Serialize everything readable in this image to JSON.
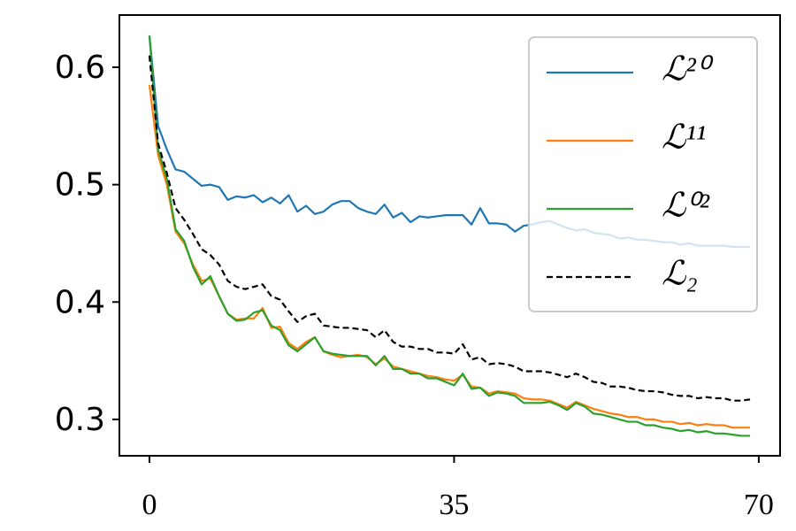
{
  "chart_data": {
    "type": "line",
    "x": [
      0,
      1,
      2,
      3,
      4,
      5,
      6,
      7,
      8,
      9,
      10,
      11,
      12,
      13,
      14,
      15,
      16,
      17,
      18,
      19,
      20,
      21,
      22,
      23,
      24,
      25,
      26,
      27,
      28,
      29,
      30,
      31,
      32,
      33,
      34,
      35,
      36,
      37,
      38,
      39,
      40,
      41,
      42,
      43,
      44,
      45,
      46,
      47,
      48,
      49,
      50,
      51,
      52,
      53,
      54,
      55,
      56,
      57,
      58,
      59,
      60,
      61,
      62,
      63,
      64,
      65,
      66,
      67,
      68,
      69
    ],
    "xlim": [
      -3.45,
      72.45
    ],
    "xticks": [
      0,
      35,
      70
    ],
    "ylim": [
      0.269,
      0.6445
    ],
    "yticks": [
      {
        "value": 0.3,
        "label": "0.3"
      },
      {
        "value": 0.4,
        "label": "0.4"
      },
      {
        "value": 0.5,
        "label": "0.5"
      },
      {
        "value": 0.6,
        "label": "0.6"
      }
    ],
    "legend": "upper right",
    "series": [
      {
        "name": "ℒ²⁰",
        "color": "#1f77b4",
        "linestyle": "solid",
        "values": [
          0.627,
          0.55,
          0.53,
          0.513,
          0.511,
          0.505,
          0.499,
          0.5,
          0.498,
          0.487,
          0.49,
          0.489,
          0.491,
          0.485,
          0.489,
          0.484,
          0.491,
          0.477,
          0.482,
          0.475,
          0.477,
          0.483,
          0.486,
          0.486,
          0.48,
          0.477,
          0.475,
          0.483,
          0.472,
          0.476,
          0.468,
          0.473,
          0.472,
          0.473,
          0.474,
          0.474,
          0.474,
          0.466,
          0.48,
          0.467,
          0.467,
          0.466,
          0.46,
          0.465,
          0.466,
          0.468,
          0.469,
          0.466,
          0.463,
          0.461,
          0.462,
          0.459,
          0.458,
          0.457,
          0.454,
          0.455,
          0.453,
          0.453,
          0.452,
          0.451,
          0.451,
          0.449,
          0.45,
          0.448,
          0.448,
          0.448,
          0.448,
          0.447,
          0.447,
          0.447
        ]
      },
      {
        "name": "ℒ¹¹",
        "color": "#ff7f0e",
        "linestyle": "solid",
        "values": [
          0.585,
          0.525,
          0.5,
          0.46,
          0.45,
          0.432,
          0.418,
          0.42,
          0.405,
          0.39,
          0.385,
          0.386,
          0.386,
          0.395,
          0.378,
          0.379,
          0.365,
          0.36,
          0.366,
          0.37,
          0.358,
          0.355,
          0.353,
          0.354,
          0.355,
          0.353,
          0.347,
          0.352,
          0.345,
          0.343,
          0.341,
          0.339,
          0.337,
          0.336,
          0.334,
          0.333,
          0.338,
          0.328,
          0.327,
          0.322,
          0.324,
          0.323,
          0.322,
          0.318,
          0.317,
          0.317,
          0.316,
          0.313,
          0.31,
          0.315,
          0.312,
          0.309,
          0.307,
          0.305,
          0.304,
          0.302,
          0.302,
          0.3,
          0.3,
          0.298,
          0.298,
          0.296,
          0.297,
          0.295,
          0.296,
          0.295,
          0.295,
          0.293,
          0.293,
          0.293
        ]
      },
      {
        "name": "ℒ⁰²",
        "color": "#2ca02c",
        "linestyle": "solid",
        "values": [
          0.627,
          0.53,
          0.505,
          0.462,
          0.452,
          0.43,
          0.415,
          0.422,
          0.405,
          0.39,
          0.384,
          0.385,
          0.391,
          0.393,
          0.38,
          0.376,
          0.363,
          0.358,
          0.364,
          0.37,
          0.358,
          0.356,
          0.355,
          0.354,
          0.354,
          0.354,
          0.346,
          0.354,
          0.343,
          0.343,
          0.339,
          0.339,
          0.335,
          0.335,
          0.332,
          0.329,
          0.339,
          0.326,
          0.327,
          0.32,
          0.323,
          0.322,
          0.32,
          0.314,
          0.314,
          0.314,
          0.315,
          0.312,
          0.308,
          0.314,
          0.311,
          0.305,
          0.304,
          0.302,
          0.3,
          0.298,
          0.298,
          0.295,
          0.295,
          0.293,
          0.292,
          0.29,
          0.291,
          0.289,
          0.29,
          0.288,
          0.288,
          0.287,
          0.286,
          0.286
        ]
      },
      {
        "name": "ℒ₂",
        "color": "#000000",
        "linestyle": "dashed",
        "values": [
          0.61,
          0.535,
          0.51,
          0.48,
          0.47,
          0.458,
          0.445,
          0.44,
          0.432,
          0.418,
          0.413,
          0.411,
          0.413,
          0.415,
          0.405,
          0.402,
          0.392,
          0.383,
          0.388,
          0.39,
          0.38,
          0.379,
          0.378,
          0.378,
          0.377,
          0.376,
          0.37,
          0.376,
          0.366,
          0.362,
          0.362,
          0.36,
          0.36,
          0.357,
          0.357,
          0.356,
          0.364,
          0.351,
          0.353,
          0.347,
          0.348,
          0.347,
          0.345,
          0.341,
          0.341,
          0.341,
          0.34,
          0.338,
          0.336,
          0.339,
          0.336,
          0.332,
          0.331,
          0.328,
          0.328,
          0.327,
          0.325,
          0.324,
          0.324,
          0.323,
          0.321,
          0.32,
          0.32,
          0.318,
          0.319,
          0.318,
          0.318,
          0.316,
          0.316,
          0.317
        ]
      }
    ]
  }
}
